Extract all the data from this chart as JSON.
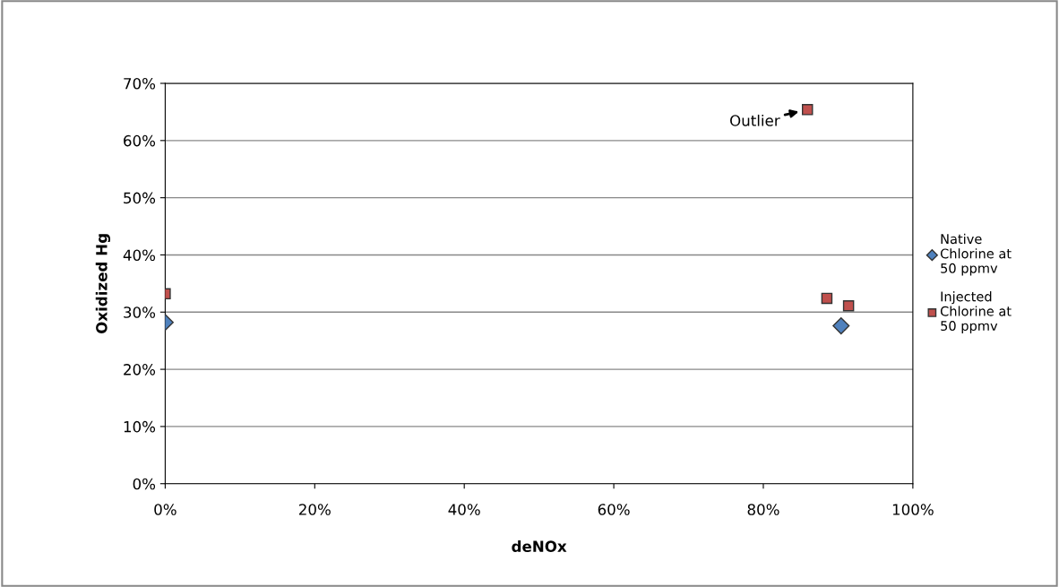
{
  "chart_data": {
    "type": "scatter",
    "xlabel": "deNOx",
    "ylabel": "Oxidized Hg",
    "series": [
      {
        "name": "Native Chlorine at 50 ppmv",
        "color": "#4f81bd",
        "marker": "diamond",
        "x": [
          0,
          90.4
        ],
        "values": [
          28.2,
          27.6
        ]
      },
      {
        "name": "Injected Chlorine at 50 ppmv",
        "color": "#c0504d",
        "marker": "square",
        "x": [
          0,
          88.5,
          91.4,
          85.9
        ],
        "values": [
          33.2,
          32.4,
          31.1,
          65.4
        ]
      }
    ],
    "xlim": [
      0,
      100
    ],
    "xticks": [
      {
        "value": 0,
        "label": "0%"
      },
      {
        "value": 20,
        "label": "20%"
      },
      {
        "value": 40,
        "label": "40%"
      },
      {
        "value": 60,
        "label": "60%"
      },
      {
        "value": 80,
        "label": "80%"
      },
      {
        "value": 100,
        "label": "100%"
      }
    ],
    "ylim": [
      0,
      70
    ],
    "yticks": [
      {
        "value": 0,
        "label": "0%"
      },
      {
        "value": 10,
        "label": "10%"
      },
      {
        "value": 20,
        "label": "20%"
      },
      {
        "value": 30,
        "label": "30%"
      },
      {
        "value": 40,
        "label": "40%"
      },
      {
        "value": 50,
        "label": "50%"
      },
      {
        "value": 60,
        "label": "60%"
      },
      {
        "value": 70,
        "label": "70%"
      }
    ],
    "grid": "y",
    "legend": "right",
    "annotations": [
      {
        "text": "Outlier",
        "x": 85.9,
        "y": 65.4
      }
    ]
  }
}
